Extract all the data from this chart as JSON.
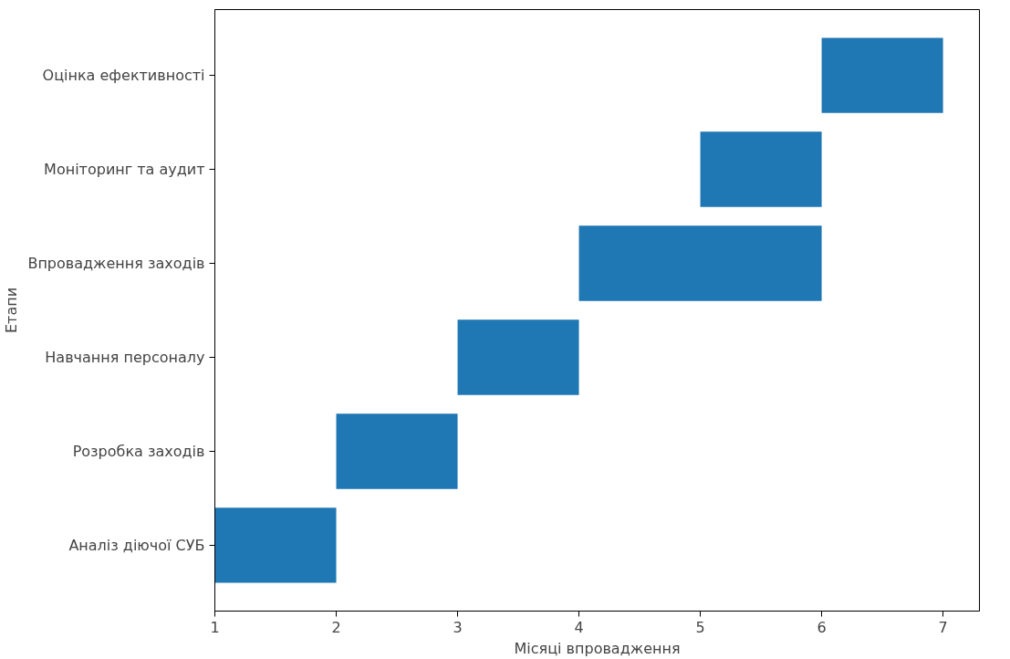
{
  "chart_data": {
    "type": "bar",
    "orientation": "horizontal",
    "categories": [
      "Оцінка ефективності",
      "Моніторинг та аудит",
      "Впровадження заходів",
      "Навчання персоналу",
      "Розробка заходів",
      "Аналіз діючої СУБ"
    ],
    "values": [
      1,
      1,
      2,
      1,
      1,
      1
    ],
    "base": [
      6,
      5,
      4,
      3,
      2,
      1
    ],
    "color": "#1f77b4",
    "xlim": [
      1,
      7.3
    ],
    "xticks": [
      1,
      2,
      3,
      4,
      5,
      6,
      7
    ],
    "xlabel": "Місяці впровадження",
    "ylabel": "Етапи"
  }
}
